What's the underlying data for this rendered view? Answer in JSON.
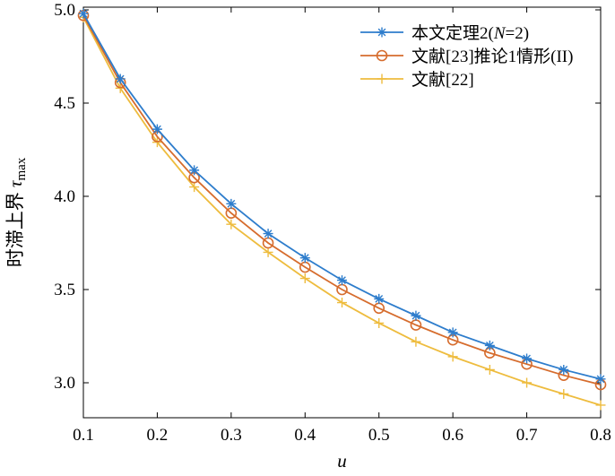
{
  "chart_data": {
    "type": "line",
    "x": [
      0.1,
      0.15,
      0.2,
      0.25,
      0.3,
      0.35,
      0.4,
      0.45,
      0.5,
      0.55,
      0.6,
      0.65,
      0.7,
      0.75,
      0.8
    ],
    "series": [
      {
        "name": "本文定理2(N=2)",
        "name_parts": {
          "pre": "本文定理2(",
          "italic": "N",
          "post": "=2)"
        },
        "color": "#2e7dcc",
        "marker": "asterisk",
        "values": [
          4.98,
          4.63,
          4.36,
          4.14,
          3.96,
          3.8,
          3.67,
          3.55,
          3.45,
          3.36,
          3.27,
          3.2,
          3.13,
          3.07,
          3.02
        ]
      },
      {
        "name": "文献[23]推论1情形(II)",
        "color": "#d66c2d",
        "marker": "circle",
        "values": [
          4.97,
          4.61,
          4.32,
          4.1,
          3.91,
          3.75,
          3.62,
          3.5,
          3.4,
          3.31,
          3.23,
          3.16,
          3.1,
          3.04,
          2.99
        ]
      },
      {
        "name": "文献[22]",
        "color": "#eebc3e",
        "marker": "plus",
        "values": [
          4.96,
          4.58,
          4.29,
          4.05,
          3.85,
          3.7,
          3.56,
          3.43,
          3.32,
          3.22,
          3.14,
          3.07,
          3.0,
          2.94,
          2.88
        ]
      }
    ],
    "xlabel": "u",
    "ylabel": {
      "text": "时滞上界 ",
      "symbol": "τ",
      "subscript": "max"
    },
    "xlim": [
      0.1,
      0.8
    ],
    "ylim": [
      2.9,
      5.0
    ],
    "xticks": [
      0.1,
      0.2,
      0.3,
      0.4,
      0.5,
      0.6,
      0.7,
      0.8
    ],
    "xtick_labels": [
      "0.1",
      "0.2",
      "0.3",
      "0.4",
      "0.5",
      "0.6",
      "0.7",
      "0.8"
    ],
    "yticks": [
      3.0,
      3.5,
      4.0,
      4.5,
      5.0
    ],
    "ytick_labels": [
      "3.0",
      "3.5",
      "4.0",
      "4.5",
      "5.0"
    ],
    "grid": false,
    "legend_position": "top-right"
  }
}
